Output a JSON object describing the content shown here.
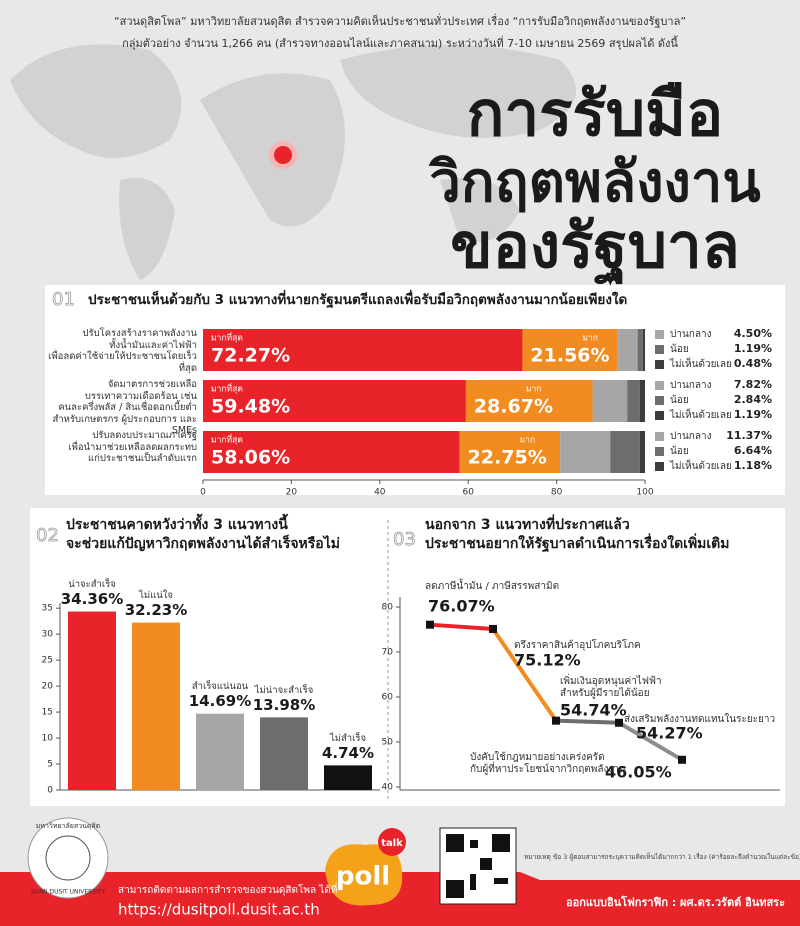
{
  "header": {
    "intro": [
      "“สวนดุสิตโพล” มหาวิทยาลัยสวนดุสิต สำรวจความคิดเห็นประชาชนทั่วประเทศ เรื่อง “การรับมือวิกฤตพลังงานของรัฐบาล”",
      "กลุ่มตัวอย่าง จำนวน 1,266 คน (สำรวจทางออนไลน์และภาคสนาม) ระหว่างวันที่ 7-10 เมษายน 2569 สรุปผลได้ ดังนี้"
    ],
    "title": [
      "การรับมือ",
      "วิกฤตพลังงาน",
      "ของรัฐบาล"
    ]
  },
  "chart_data": [
    {
      "type": "bar",
      "stacked": true,
      "orientation": "horizontal",
      "number": "01",
      "title": "ประชาชนเห็นด้วยกับ 3 แนวทางที่นายกรัฐมนตรีแถลงเพื่อรับมือวิกฤตพลังงานมากน้อยเพียงใด",
      "categories": [
        "ปรับโครงสร้างราคาพลังงาน\nทั้งน้ำมันและค่าไฟฟ้า\nเพื่อลดค่าใช้จ่ายให้ประชาชนโดยเร็วที่สุด",
        "จัดมาตรการช่วยเหลือ\nบรรเทาความเดือดร้อน เช่น\nคนละครึ่งพลัส / สินเชื่อดอกเบี้ยต่ำ\nสำหรับเกษตรกร ผู้ประกอบการ และ SMEs",
        "ปรับลดงบประมาณภาครัฐ\nเพื่อนำมาช่วยเหลือลดผลกระทบ\nแก่ประชาชนเป็นลำดับแรก"
      ],
      "series": [
        {
          "name": "มากที่สุด",
          "color": "#e8242a",
          "values": [
            72.27,
            59.48,
            58.06
          ],
          "value_labels": [
            "72.27%",
            "59.48%",
            "58.06%"
          ]
        },
        {
          "name": "มาก",
          "color": "#f28b20",
          "values": [
            21.56,
            28.67,
            22.75
          ],
          "value_labels": [
            "21.56%",
            "28.67%",
            "22.75%"
          ]
        },
        {
          "name": "ปานกลาง",
          "color": "#a6a6a6",
          "values": [
            4.5,
            7.82,
            11.37
          ],
          "value_labels": [
            "4.50%",
            "7.82%",
            "11.37%"
          ]
        },
        {
          "name": "น้อย",
          "color": "#6d6d6d",
          "values": [
            1.19,
            2.84,
            6.64
          ],
          "value_labels": [
            "1.19%",
            "2.84%",
            "6.64%"
          ]
        },
        {
          "name": "ไม่เห็นด้วยเลย",
          "color": "#3c3c3c",
          "values": [
            0.48,
            1.19,
            1.18
          ],
          "value_labels": [
            "0.48%",
            "1.19%",
            "1.18%"
          ]
        }
      ],
      "xlim": [
        0,
        100
      ],
      "xticks": [
        0,
        20,
        40,
        60,
        80,
        100
      ]
    },
    {
      "type": "bar",
      "number": "02",
      "title": "ประชาชนคาดหวังว่าทั้ง 3 แนวทางนี้\nจะช่วยแก้ปัญหาวิกฤตพลังงานได้สำเร็จหรือไม่",
      "categories": [
        "น่าจะสำเร็จ",
        "ไม่แน่ใจ",
        "สำเร็จแน่นอน",
        "ไม่น่าจะสำเร็จ",
        "ไม่สำเร็จ"
      ],
      "values": [
        34.36,
        32.23,
        14.69,
        13.98,
        4.74
      ],
      "value_labels": [
        "34.36%",
        "32.23%",
        "14.69%",
        "13.98%",
        "4.74%"
      ],
      "colors": [
        "#e8242a",
        "#f28b20",
        "#a6a6a6",
        "#6d6d6d",
        "#111111"
      ],
      "ylim": [
        0,
        36
      ],
      "yticks": [
        0,
        5,
        10,
        15,
        20,
        25,
        30,
        35
      ]
    },
    {
      "type": "line",
      "number": "03",
      "title": "นอกจาก 3 แนวทางที่ประกาศแล้ว\nประชาชนอยากให้รัฐบาลดำเนินการเรื่องใดเพิ่มเติม",
      "categories": [
        "ลดภาษีน้ำมัน / ภาษีสรรพสามิต",
        "ตรึงราคาสินค้าอุปโภคบริโภค",
        "เพิ่มเงินอุดหนุนค่าไฟฟ้า\nสำหรับผู้มีรายได้น้อย",
        "ส่งเสริมพลังงานทดแทนในระยะยาว",
        "บังคับใช้กฎหมายอย่างเคร่งครัด\nกับผู้ที่หาประโยชน์จากวิกฤตพลังงาน"
      ],
      "values": [
        76.07,
        75.12,
        54.74,
        54.27,
        46.05
      ],
      "value_labels": [
        "76.07%",
        "75.12%",
        "54.74%",
        "54.27%",
        "46.05%"
      ],
      "segment_colors": [
        "#e8242a",
        "#f28b20",
        "#6d6d6d",
        "#8c8c8c"
      ],
      "ylim": [
        40,
        80
      ],
      "yticks": [
        40,
        50,
        60,
        70,
        80
      ]
    }
  ],
  "footer": {
    "logo_th": "มหาวิทยาลัยสวนดุสิต",
    "logo_en": "SUAN DUSIT UNIVERSITY",
    "follow": "สามารถติดตามผลการสำรวจของสวนดุสิตโพล ได้ที่",
    "url": "https://dusitpoll.dusit.ac.th",
    "brand": "poll",
    "brand_tag": "talk",
    "note": "หมายเหตุ ข้อ 3 ผู้ตอบสามารถระบุความคิดเห็นได้มากกว่า 1 เรื่อง (ค่าร้อยละจึงคำนวณในแต่ละข้อ)",
    "designer": "ออกแบบอินโฟกราฟิก : ผศ.ดร.วรัตต์ อินทสระ"
  }
}
